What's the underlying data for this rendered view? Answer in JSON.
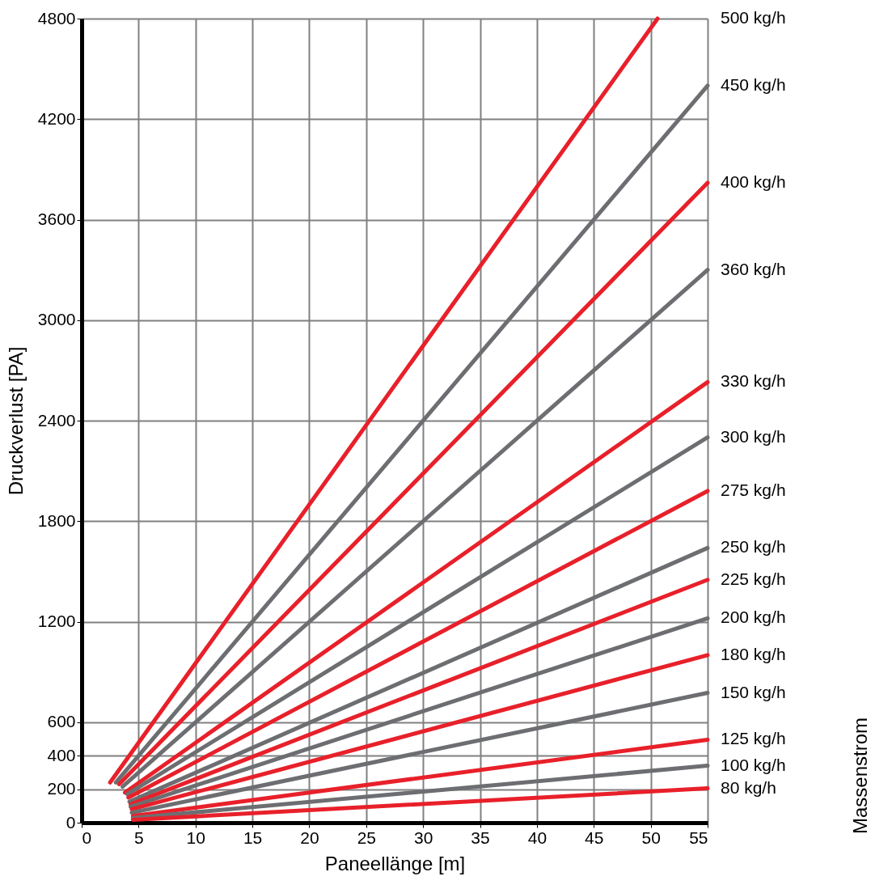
{
  "chart_data": {
    "type": "line",
    "xlabel": "Paneellänge [m]",
    "ylabel": "Druckverlust [PA]",
    "annotations": [
      "Massenstrom"
    ],
    "xlim": [
      0,
      55
    ],
    "ylim": [
      0,
      4800
    ],
    "xticks": [
      0,
      5,
      10,
      15,
      20,
      25,
      30,
      35,
      40,
      45,
      50,
      55
    ],
    "yticks": [
      0,
      200,
      400,
      600,
      1200,
      1800,
      2400,
      3000,
      3600,
      4200,
      4800
    ],
    "grid": true,
    "legend": false,
    "line_style": "solid",
    "marker": "none",
    "series": [
      {
        "name": "500 kg/h",
        "color": "#e8202a",
        "x": [
          2.5,
          50.6
        ],
        "values": [
          240,
          4800
        ]
      },
      {
        "name": "450 kg/h",
        "color": "#6d6e71",
        "x": [
          3,
          55
        ],
        "values": [
          240,
          4400
        ]
      },
      {
        "name": "400 kg/h",
        "color": "#e8202a",
        "x": [
          3.3,
          55
        ],
        "values": [
          230,
          3820
        ]
      },
      {
        "name": "360 kg/h",
        "color": "#6d6e71",
        "x": [
          3.6,
          55
        ],
        "values": [
          215,
          3300
        ]
      },
      {
        "name": "330 kg/h",
        "color": "#e8202a",
        "x": [
          3.8,
          55
        ],
        "values": [
          180,
          2630
        ]
      },
      {
        "name": "300 kg/h",
        "color": "#6d6e71",
        "x": [
          4,
          55
        ],
        "values": [
          170,
          2300
        ]
      },
      {
        "name": "275 kg/h",
        "color": "#e8202a",
        "x": [
          4.1,
          55
        ],
        "values": [
          150,
          1980
        ]
      },
      {
        "name": "250 kg/h",
        "color": "#6d6e71",
        "x": [
          4.2,
          55
        ],
        "values": [
          125,
          1640
        ]
      },
      {
        "name": "225 kg/h",
        "color": "#e8202a",
        "x": [
          4.3,
          55
        ],
        "values": [
          110,
          1450
        ]
      },
      {
        "name": "200 kg/h",
        "color": "#6d6e71",
        "x": [
          4.3,
          55
        ],
        "values": [
          95,
          1220
        ]
      },
      {
        "name": "180 kg/h",
        "color": "#e8202a",
        "x": [
          4.4,
          55
        ],
        "values": [
          80,
          1000
        ]
      },
      {
        "name": "150 kg/h",
        "color": "#6d6e71",
        "x": [
          4.4,
          55
        ],
        "values": [
          60,
          775
        ]
      },
      {
        "name": "125 kg/h",
        "color": "#e8202a",
        "x": [
          4.5,
          55
        ],
        "values": [
          40,
          495
        ]
      },
      {
        "name": "100 kg/h",
        "color": "#6d6e71",
        "x": [
          4.5,
          55
        ],
        "values": [
          28,
          340
        ]
      },
      {
        "name": "80 kg/h",
        "color": "#e8202a",
        "x": [
          4.5,
          55
        ],
        "values": [
          17,
          205
        ]
      }
    ]
  }
}
